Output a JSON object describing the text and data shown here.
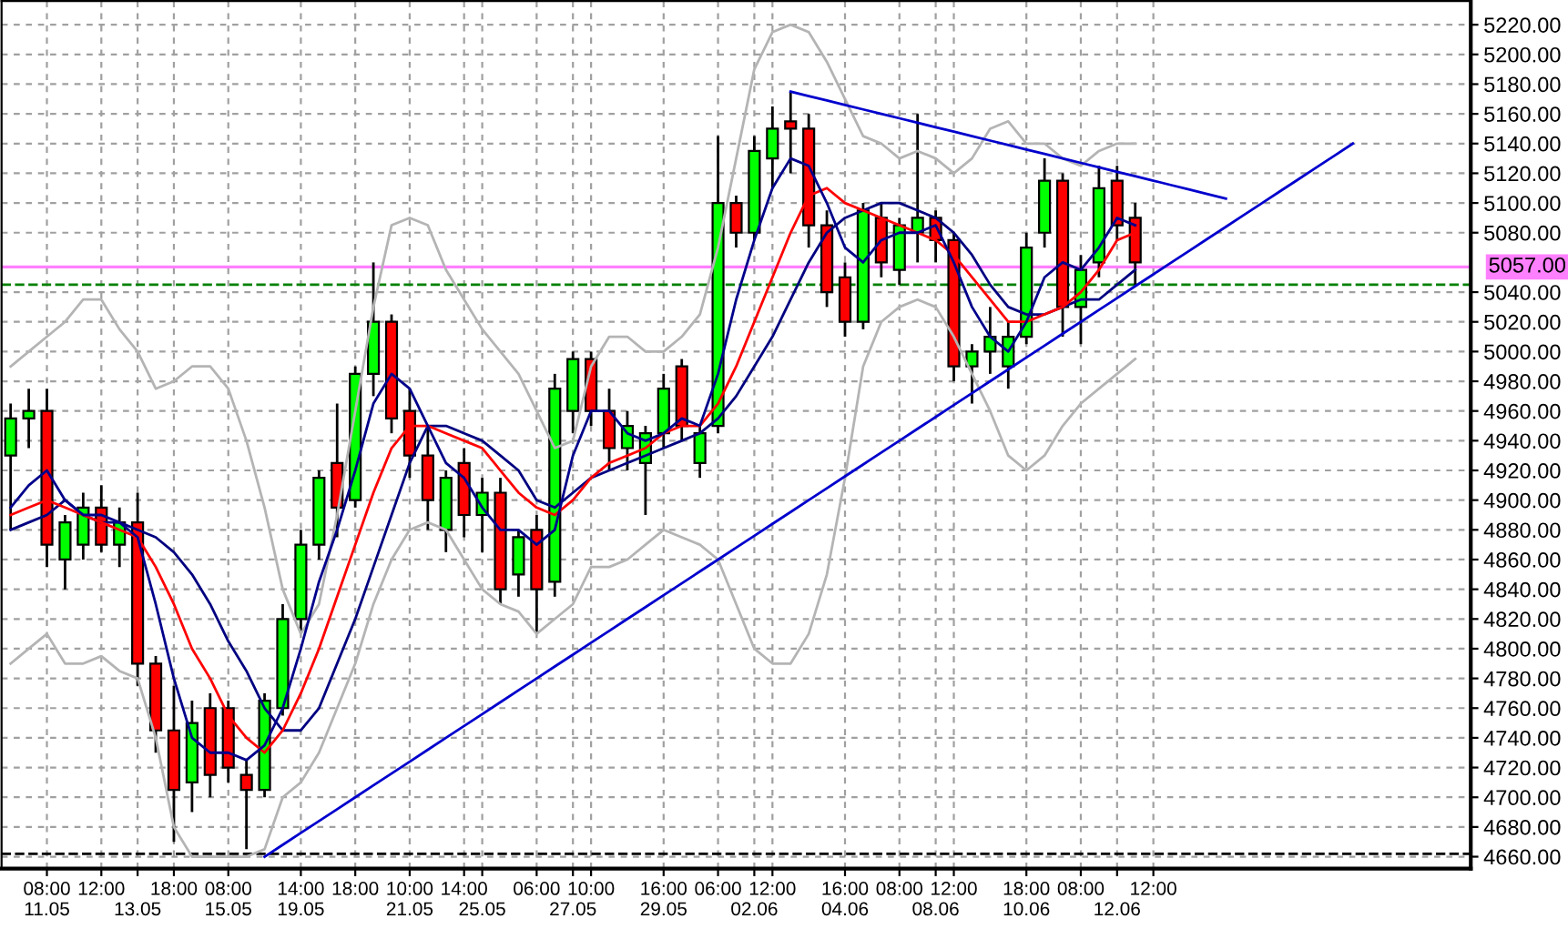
{
  "chart_data": {
    "type": "candlestick",
    "categories": [
      null,
      null,
      "08:00\n11.05",
      null,
      null,
      "12:00",
      null,
      "\n13.05",
      null,
      "18:00",
      null,
      null,
      "08:00\n15.05",
      null,
      null,
      null,
      "14:00\n19.05",
      null,
      null,
      "18:00",
      null,
      null,
      "10:00\n21.05",
      null,
      null,
      "14:00",
      "\n25.05",
      null,
      null,
      "06:00",
      null,
      "\n27.05",
      "10:00",
      null,
      null,
      null,
      "16:00\n29.05",
      null,
      null,
      "06:00",
      null,
      "\n02.06",
      "12:00",
      null,
      null,
      null,
      "16:00\n04.06",
      null,
      null,
      "08:00",
      null,
      "\n08.06",
      "12:00",
      null,
      null,
      null,
      "18:00\n10.06",
      null,
      null,
      "08:00",
      null,
      "\n12.06",
      null,
      "12:00",
      null,
      null,
      null,
      null,
      null,
      null,
      null,
      null,
      null,
      null,
      null,
      null,
      null,
      null,
      null,
      null,
      null
    ],
    "ohlc": [
      [
        4930,
        4965,
        4880,
        4955
      ],
      [
        4955,
        4975,
        4935,
        4960
      ],
      [
        4960,
        4975,
        4855,
        4870
      ],
      [
        4860,
        4890,
        4840,
        4885
      ],
      [
        4870,
        4905,
        4860,
        4895
      ],
      [
        4895,
        4910,
        4865,
        4870
      ],
      [
        4870,
        4895,
        4855,
        4885
      ],
      [
        4885,
        4905,
        4775,
        4790
      ],
      [
        4790,
        4795,
        4730,
        4745
      ],
      [
        4745,
        4775,
        4670,
        4705
      ],
      [
        4710,
        4765,
        4690,
        4750
      ],
      [
        4760,
        4770,
        4700,
        4715
      ],
      [
        4760,
        4765,
        4710,
        4720
      ],
      [
        4715,
        4725,
        4665,
        4705
      ],
      [
        4705,
        4770,
        4700,
        4765
      ],
      [
        4760,
        4830,
        4755,
        4820
      ],
      [
        4820,
        4880,
        4810,
        4870
      ],
      [
        4870,
        4920,
        4860,
        4915
      ],
      [
        4925,
        4965,
        4875,
        4895
      ],
      [
        4900,
        4990,
        4895,
        4985
      ],
      [
        4985,
        5060,
        4970,
        5020
      ],
      [
        5020,
        5025,
        4945,
        4955
      ],
      [
        4960,
        4975,
        4915,
        4930
      ],
      [
        4930,
        4950,
        4880,
        4900
      ],
      [
        4880,
        4920,
        4865,
        4915
      ],
      [
        4925,
        4935,
        4875,
        4890
      ],
      [
        4890,
        4915,
        4865,
        4905
      ],
      [
        4905,
        4915,
        4830,
        4840
      ],
      [
        4850,
        4880,
        4835,
        4875
      ],
      [
        4880,
        4890,
        4810,
        4840
      ],
      [
        4845,
        4985,
        4835,
        4975
      ],
      [
        4960,
        5000,
        4945,
        4995
      ],
      [
        4995,
        5000,
        4950,
        4960
      ],
      [
        4960,
        4975,
        4920,
        4935
      ],
      [
        4935,
        4960,
        4920,
        4950
      ],
      [
        4925,
        4950,
        4890,
        4945
      ],
      [
        4945,
        4985,
        4935,
        4975
      ],
      [
        4990,
        4995,
        4940,
        4950
      ],
      [
        4925,
        4950,
        4915,
        4945
      ],
      [
        4950,
        5145,
        4945,
        5100
      ],
      [
        5100,
        5105,
        5070,
        5080
      ],
      [
        5080,
        5145,
        5075,
        5135
      ],
      [
        5130,
        5165,
        5110,
        5150
      ],
      [
        5155,
        5175,
        5120,
        5150
      ],
      [
        5150,
        5160,
        5070,
        5085
      ],
      [
        5085,
        5095,
        5030,
        5040
      ],
      [
        5050,
        5060,
        5010,
        5020
      ],
      [
        5020,
        5100,
        5015,
        5095
      ],
      [
        5090,
        5100,
        5050,
        5060
      ],
      [
        5055,
        5090,
        5045,
        5085
      ],
      [
        5080,
        5160,
        5060,
        5090
      ],
      [
        5090,
        5095,
        5060,
        5075
      ],
      [
        5075,
        5080,
        4980,
        4990
      ],
      [
        4990,
        5005,
        4965,
        5000
      ],
      [
        5000,
        5030,
        4985,
        5010
      ],
      [
        4990,
        5020,
        4975,
        5010
      ],
      [
        5010,
        5080,
        5005,
        5070
      ],
      [
        5080,
        5130,
        5070,
        5115
      ],
      [
        5115,
        5120,
        5010,
        5030
      ],
      [
        5030,
        5065,
        5005,
        5055
      ],
      [
        5060,
        5125,
        5050,
        5110
      ],
      [
        5115,
        5125,
        5075,
        5085
      ],
      [
        5090,
        5100,
        5045,
        5060
      ],
      null,
      null,
      null,
      null,
      null,
      null,
      null,
      null,
      null,
      null,
      null,
      null,
      null,
      null,
      null,
      null,
      null,
      null
    ],
    "series": [
      {
        "type": "line",
        "color": "#b4b4b4",
        "values": [
          4990,
          5000,
          5010,
          5020,
          5035,
          5035,
          5015,
          5000,
          4975,
          4980,
          4990,
          4990,
          4975,
          4940,
          4895,
          4840,
          4810,
          4830,
          4890,
          4960,
          5030,
          5085,
          5090,
          5085,
          5055,
          5035,
          5015,
          5000,
          4985,
          4960,
          4935,
          4940,
          4990,
          5010,
          5010,
          5000,
          5000,
          5010,
          5025,
          5070,
          5130,
          5190,
          5215,
          5220,
          5215,
          5195,
          5170,
          5145,
          5140,
          5130,
          5135,
          5130,
          5120,
          5130,
          5150,
          5155,
          5140,
          5140,
          5130,
          5125,
          5135,
          5140,
          5140,
          null,
          null,
          null,
          null,
          null,
          null,
          null,
          null,
          null,
          null,
          null,
          null,
          null,
          null,
          null,
          null,
          null,
          null
        ]
      },
      {
        "type": "line",
        "color": "#b4b4b4",
        "values": [
          4790,
          4800,
          4810,
          4790,
          4790,
          4795,
          4785,
          4780,
          4740,
          4680,
          4660,
          4660,
          4660,
          4660,
          4665,
          4700,
          4710,
          4730,
          4760,
          4790,
          4830,
          4860,
          4880,
          4885,
          4880,
          4860,
          4840,
          4830,
          4825,
          4810,
          4820,
          4830,
          4855,
          4855,
          4860,
          4870,
          4880,
          4875,
          4870,
          4860,
          4830,
          4800,
          4790,
          4790,
          4810,
          4850,
          4915,
          4990,
          5020,
          5030,
          5035,
          5030,
          5010,
          4985,
          4960,
          4930,
          4920,
          4930,
          4950,
          4965,
          4975,
          4985,
          4995,
          null,
          null,
          null,
          null,
          null,
          null,
          null,
          null,
          null,
          null,
          null,
          null,
          null,
          null,
          null,
          null,
          null,
          null
        ]
      },
      {
        "type": "line",
        "color": "#000080",
        "values": [
          4880,
          4885,
          4890,
          4900,
          4890,
          4885,
          4885,
          4880,
          4875,
          4865,
          4850,
          4830,
          4805,
          4785,
          4760,
          4745,
          4745,
          4760,
          4790,
          4820,
          4855,
          4890,
          4925,
          4950,
          4950,
          4945,
          4940,
          4930,
          4920,
          4900,
          4895,
          4905,
          4915,
          4920,
          4925,
          4930,
          4935,
          4940,
          4945,
          4955,
          4970,
          4990,
          5010,
          5035,
          5060,
          5080,
          5090,
          5095,
          5100,
          5100,
          5095,
          5090,
          5080,
          5065,
          5045,
          5030,
          5025,
          5025,
          5030,
          5035,
          5035,
          5045,
          5055,
          null,
          null,
          null,
          null,
          null,
          null,
          null,
          null,
          null,
          null,
          null,
          null,
          null,
          null,
          null,
          null,
          null,
          null
        ]
      },
      {
        "type": "line",
        "color": "#ff0000",
        "values": [
          4890,
          4895,
          4900,
          4895,
          4890,
          4885,
          4880,
          4875,
          4855,
          4830,
          4800,
          4780,
          4755,
          4740,
          4730,
          4745,
          4770,
          4800,
          4835,
          4870,
          4905,
          4935,
          4950,
          4950,
          4945,
          4940,
          4935,
          4920,
          4905,
          4895,
          4890,
          4900,
          4915,
          4925,
          4930,
          4935,
          4945,
          4950,
          4950,
          4965,
          4990,
          5020,
          5050,
          5080,
          5105,
          5110,
          5100,
          5095,
          5090,
          5085,
          5080,
          5075,
          5065,
          5050,
          5035,
          5020,
          5020,
          5025,
          5030,
          5040,
          5055,
          5075,
          5080,
          null,
          null,
          null,
          null,
          null,
          null,
          null,
          null,
          null,
          null,
          null,
          null,
          null,
          null,
          null,
          null,
          null,
          null
        ]
      },
      {
        "type": "line",
        "color": "#00008b",
        "values": [
          4895,
          4910,
          4920,
          4900,
          4890,
          4890,
          4885,
          4875,
          4830,
          4780,
          4740,
          4730,
          4730,
          4725,
          4735,
          4760,
          4800,
          4845,
          4880,
          4920,
          4965,
          4985,
          4975,
          4950,
          4925,
          4915,
          4895,
          4880,
          4880,
          4870,
          4880,
          4930,
          4960,
          4960,
          4945,
          4940,
          4945,
          4955,
          4950,
          4985,
          5035,
          5075,
          5110,
          5130,
          5125,
          5100,
          5070,
          5060,
          5075,
          5080,
          5080,
          5085,
          5060,
          5030,
          5010,
          5000,
          5020,
          5050,
          5060,
          5055,
          5070,
          5090,
          5085,
          null,
          null,
          null,
          null,
          null,
          null,
          null,
          null,
          null,
          null,
          null,
          null,
          null,
          null,
          null,
          null,
          null,
          null
        ]
      },
      {
        "type": "line",
        "color": "#0000cd",
        "values": [
          null,
          null,
          null,
          null,
          null,
          null,
          null,
          null,
          null,
          null,
          null,
          null,
          null,
          null,
          4660,
          4668,
          4676,
          4684,
          4692,
          4700,
          4708,
          4716,
          4724,
          4732,
          4740,
          4748,
          4756,
          4764,
          4772,
          4780,
          4788,
          4796,
          4804,
          4812,
          4820,
          4828,
          4836,
          4844,
          4852,
          4860,
          4868,
          4876,
          4884,
          4892,
          4900,
          4908,
          4916,
          4924,
          4932,
          4940,
          4948,
          4956,
          4964,
          4972,
          4980,
          4988,
          4996,
          5004,
          5012,
          5020,
          5028,
          5036,
          5044,
          5052,
          5060,
          5068,
          5076,
          5084,
          5092,
          5100,
          5108,
          5116,
          5124,
          5132,
          5140,
          null,
          null,
          null,
          null,
          null,
          null
        ]
      },
      {
        "type": "line",
        "color": "#0000cd",
        "values": [
          null,
          null,
          null,
          null,
          null,
          null,
          null,
          null,
          null,
          null,
          null,
          null,
          null,
          null,
          null,
          null,
          null,
          null,
          null,
          null,
          null,
          null,
          null,
          null,
          null,
          null,
          null,
          null,
          null,
          null,
          null,
          null,
          null,
          null,
          null,
          null,
          null,
          null,
          null,
          null,
          null,
          null,
          null,
          5175,
          5172,
          5169,
          5166,
          5163,
          5160,
          5157,
          5154,
          5151,
          5148,
          5145,
          5142,
          5139,
          5136,
          5133,
          5130,
          5127,
          5124,
          5121,
          5118,
          5115,
          5112,
          5109,
          5106,
          5103,
          null,
          null,
          null,
          null,
          null,
          null,
          null,
          null,
          null,
          null,
          null,
          null,
          null
        ]
      }
    ],
    "ref_lines": [
      {
        "axis": "y",
        "value": 5057,
        "label": "5057.00",
        "color": "#ff80ff",
        "line_style": "solid"
      },
      {
        "axis": "y",
        "value": 5045,
        "label": null,
        "color": "#008000",
        "line_style": "dashed"
      },
      {
        "axis": "y",
        "value": 4662,
        "label": null,
        "color": "#000000",
        "line_style": "dashed"
      }
    ],
    "ylim": [
      4652,
      5236
    ],
    "yticks": [
      {
        "value": 4660,
        "label": "4660.00"
      },
      {
        "value": 4680,
        "label": "4680.00"
      },
      {
        "value": 4700,
        "label": "4700.00"
      },
      {
        "value": 4720,
        "label": "4720.00"
      },
      {
        "value": 4740,
        "label": "4740.00"
      },
      {
        "value": 4760,
        "label": "4760.00"
      },
      {
        "value": 4780,
        "label": "4780.00"
      },
      {
        "value": 4800,
        "label": "4800.00"
      },
      {
        "value": 4820,
        "label": "4820.00"
      },
      {
        "value": 4840,
        "label": "4840.00"
      },
      {
        "value": 4860,
        "label": "4860.00"
      },
      {
        "value": 4880,
        "label": "4880.00"
      },
      {
        "value": 4900,
        "label": "4900.00"
      },
      {
        "value": 4920,
        "label": "4920.00"
      },
      {
        "value": 4940,
        "label": "4940.00"
      },
      {
        "value": 4960,
        "label": "4960.00"
      },
      {
        "value": 4980,
        "label": "4980.00"
      },
      {
        "value": 5000,
        "label": "5000.00"
      },
      {
        "value": 5020,
        "label": "5020.00"
      },
      {
        "value": 5040,
        "label": "5040.00"
      },
      {
        "value": 5080,
        "label": "5080.00"
      },
      {
        "value": 5100,
        "label": "5100.00"
      },
      {
        "value": 5120,
        "label": "5120.00"
      },
      {
        "value": 5140,
        "label": "5140.00"
      },
      {
        "value": 5160,
        "label": "5160.00"
      },
      {
        "value": 5180,
        "label": "5180.00"
      },
      {
        "value": 5200,
        "label": "5200.00"
      },
      {
        "value": 5220,
        "label": "5220.00"
      }
    ],
    "grid": true,
    "legend": false
  }
}
